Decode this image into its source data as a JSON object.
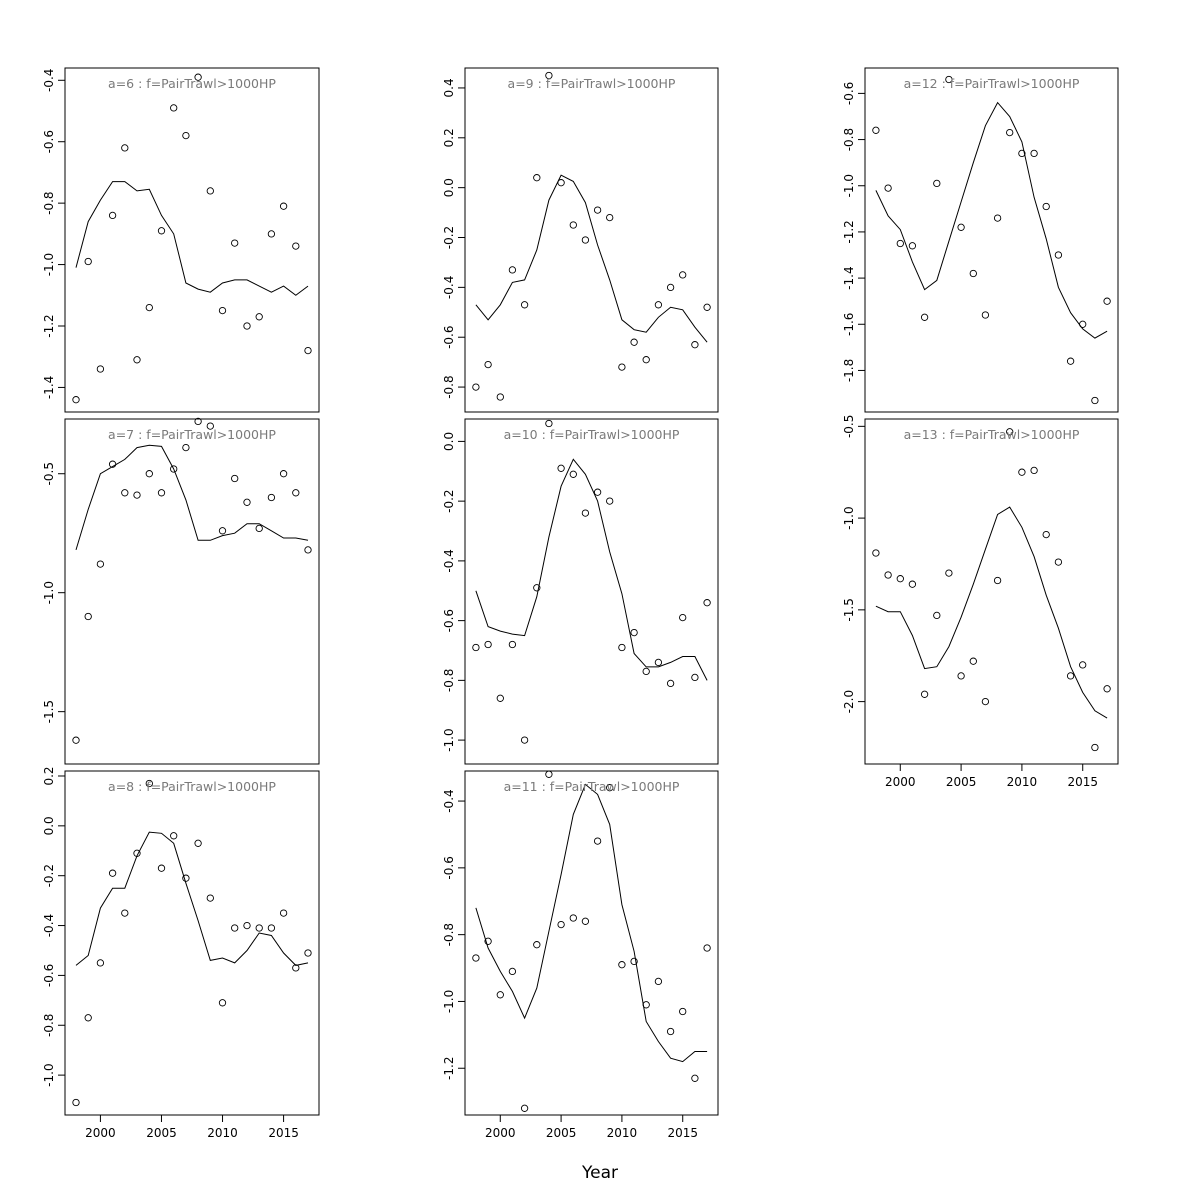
{
  "figure": {
    "xlabel": "Year",
    "axis_color": "#000000",
    "title_color": "#7a7a7a"
  },
  "chart_data": [
    {
      "type": "scatter",
      "title": "a=6  :  f=PairTrawl>1000HP",
      "xlabel": "",
      "ylabel": "",
      "xlim": [
        1997.1,
        2017.9
      ],
      "ylim": [
        -1.48,
        -0.36
      ],
      "x_ticks": [],
      "x_tick_labels": [],
      "y_ticks": [
        -1.4,
        -1.2,
        -1.0,
        -0.8,
        -0.6,
        -0.4
      ],
      "y_tick_labels": [
        "-1.4",
        "-1.2",
        "-1.0",
        "-0.8",
        "-0.6",
        "-0.4"
      ],
      "series": [
        {
          "kind": "points",
          "x": [
            1998,
            1999,
            2000,
            2001,
            2002,
            2003,
            2004,
            2005,
            2006,
            2007,
            2008,
            2009,
            2010,
            2011,
            2012,
            2013,
            2014,
            2015,
            2016,
            2017
          ],
          "y": [
            -1.44,
            -0.99,
            -1.34,
            -0.84,
            -0.62,
            -1.31,
            -1.14,
            -0.89,
            -0.49,
            -0.58,
            -0.39,
            -0.76,
            -1.15,
            -0.93,
            -1.2,
            -1.17,
            -0.9,
            -0.81,
            -0.94,
            -1.28
          ]
        },
        {
          "kind": "line",
          "x": [
            1998,
            1999,
            2000,
            2001,
            2002,
            2003,
            2004,
            2005,
            2006,
            2007,
            2008,
            2009,
            2010,
            2011,
            2012,
            2013,
            2014,
            2015,
            2016,
            2017
          ],
          "y": [
            -1.01,
            -0.86,
            -0.79,
            -0.73,
            -0.73,
            -0.76,
            -0.755,
            -0.84,
            -0.9,
            -1.06,
            -1.08,
            -1.09,
            -1.06,
            -1.05,
            -1.05,
            -1.07,
            -1.09,
            -1.07,
            -1.1,
            -1.07
          ]
        }
      ]
    },
    {
      "type": "scatter",
      "title": "a=7  :  f=PairTrawl>1000HP",
      "xlabel": "",
      "ylabel": "",
      "xlim": [
        1997.1,
        2017.9
      ],
      "ylim": [
        -1.72,
        -0.27
      ],
      "x_ticks": [],
      "x_tick_labels": [],
      "y_ticks": [
        -1.5,
        -1.0,
        -0.5
      ],
      "y_tick_labels": [
        "-1.5",
        "-1.0",
        "-0.5"
      ],
      "series": [
        {
          "kind": "points",
          "x": [
            1998,
            1999,
            2000,
            2001,
            2002,
            2003,
            2004,
            2005,
            2006,
            2007,
            2008,
            2009,
            2010,
            2011,
            2012,
            2013,
            2014,
            2015,
            2016,
            2017
          ],
          "y": [
            -1.62,
            -1.1,
            -0.88,
            -0.46,
            -0.58,
            -0.59,
            -0.5,
            -0.58,
            -0.48,
            -0.39,
            -0.28,
            -0.3,
            -0.74,
            -0.52,
            -0.62,
            -0.73,
            -0.6,
            -0.5,
            -0.58,
            -0.82
          ]
        },
        {
          "kind": "line",
          "x": [
            1998,
            1999,
            2000,
            2001,
            2002,
            2003,
            2004,
            2005,
            2006,
            2007,
            2008,
            2009,
            2010,
            2011,
            2012,
            2013,
            2014,
            2015,
            2016,
            2017
          ],
          "y": [
            -0.82,
            -0.65,
            -0.5,
            -0.47,
            -0.44,
            -0.39,
            -0.38,
            -0.385,
            -0.48,
            -0.61,
            -0.78,
            -0.78,
            -0.76,
            -0.75,
            -0.71,
            -0.71,
            -0.74,
            -0.77,
            -0.77,
            -0.78
          ]
        }
      ]
    },
    {
      "type": "scatter",
      "title": "a=8  :  f=PairTrawl>1000HP",
      "xlabel": "",
      "ylabel": "",
      "xlim": [
        1997.1,
        2017.9
      ],
      "ylim": [
        -1.16,
        0.22
      ],
      "x_ticks": [
        2000,
        2005,
        2010,
        2015
      ],
      "x_tick_labels": [
        "2000",
        "2005",
        "2010",
        "2015"
      ],
      "y_ticks": [
        -1.0,
        -0.8,
        -0.6,
        -0.4,
        -0.2,
        0.0,
        0.2
      ],
      "y_tick_labels": [
        "-1.0",
        "-0.8",
        "-0.6",
        "-0.4",
        "-0.2",
        "0.0",
        "0.2"
      ],
      "series": [
        {
          "kind": "points",
          "x": [
            1998,
            1999,
            2000,
            2001,
            2002,
            2003,
            2004,
            2005,
            2006,
            2007,
            2008,
            2009,
            2010,
            2011,
            2012,
            2013,
            2014,
            2015,
            2016,
            2017
          ],
          "y": [
            -1.11,
            -0.77,
            -0.55,
            -0.19,
            -0.35,
            -0.11,
            0.17,
            -0.17,
            -0.04,
            -0.21,
            -0.07,
            -0.29,
            -0.71,
            -0.41,
            -0.4,
            -0.41,
            -0.41,
            -0.35,
            -0.57,
            -0.51
          ]
        },
        {
          "kind": "line",
          "x": [
            1998,
            1999,
            2000,
            2001,
            2002,
            2003,
            2004,
            2005,
            2006,
            2007,
            2008,
            2009,
            2010,
            2011,
            2012,
            2013,
            2014,
            2015,
            2016,
            2017
          ],
          "y": [
            -0.56,
            -0.52,
            -0.33,
            -0.25,
            -0.25,
            -0.12,
            -0.025,
            -0.03,
            -0.07,
            -0.23,
            -0.38,
            -0.54,
            -0.53,
            -0.55,
            -0.5,
            -0.43,
            -0.44,
            -0.51,
            -0.56,
            -0.55
          ]
        }
      ]
    },
    {
      "type": "scatter",
      "title": "a=9  :  f=PairTrawl>1000HP",
      "xlabel": "",
      "ylabel": "",
      "xlim": [
        1997.1,
        2017.9
      ],
      "ylim": [
        -0.9,
        0.48
      ],
      "x_ticks": [],
      "x_tick_labels": [],
      "y_ticks": [
        -0.8,
        -0.6,
        -0.4,
        -0.2,
        0.0,
        0.2,
        0.4
      ],
      "y_tick_labels": [
        "-0.8",
        "-0.6",
        "-0.4",
        "-0.2",
        "0.0",
        "0.2",
        "0.4"
      ],
      "series": [
        {
          "kind": "points",
          "x": [
            1998,
            1999,
            2000,
            2001,
            2002,
            2003,
            2004,
            2005,
            2006,
            2007,
            2008,
            2009,
            2010,
            2011,
            2012,
            2013,
            2014,
            2015,
            2016,
            2017
          ],
          "y": [
            -0.8,
            -0.71,
            -0.84,
            -0.33,
            -0.47,
            0.04,
            0.45,
            0.02,
            -0.15,
            -0.21,
            -0.09,
            -0.12,
            -0.72,
            -0.62,
            -0.69,
            -0.47,
            -0.4,
            -0.35,
            -0.63,
            -0.48
          ]
        },
        {
          "kind": "line",
          "x": [
            1998,
            1999,
            2000,
            2001,
            2002,
            2003,
            2004,
            2005,
            2006,
            2007,
            2008,
            2009,
            2010,
            2011,
            2012,
            2013,
            2014,
            2015,
            2016,
            2017
          ],
          "y": [
            -0.47,
            -0.53,
            -0.47,
            -0.38,
            -0.37,
            -0.25,
            -0.05,
            0.05,
            0.025,
            -0.06,
            -0.23,
            -0.37,
            -0.53,
            -0.57,
            -0.58,
            -0.52,
            -0.48,
            -0.49,
            -0.56,
            -0.62
          ]
        }
      ]
    },
    {
      "type": "scatter",
      "title": "a=10  :  f=PairTrawl>1000HP",
      "xlabel": "",
      "ylabel": "",
      "xlim": [
        1997.1,
        2017.9
      ],
      "ylim": [
        -1.08,
        0.075
      ],
      "x_ticks": [],
      "x_tick_labels": [],
      "y_ticks": [
        -1.0,
        -0.8,
        -0.6,
        -0.4,
        -0.2,
        0.0
      ],
      "y_tick_labels": [
        "-1.0",
        "-0.8",
        "-0.6",
        "-0.4",
        "-0.2",
        "0.0"
      ],
      "series": [
        {
          "kind": "points",
          "x": [
            1998,
            1999,
            2000,
            2001,
            2002,
            2003,
            2004,
            2005,
            2006,
            2007,
            2008,
            2009,
            2010,
            2011,
            2012,
            2013,
            2014,
            2015,
            2016,
            2017
          ],
          "y": [
            -0.69,
            -0.68,
            -0.86,
            -0.68,
            -1.0,
            -0.49,
            0.06,
            -0.09,
            -0.11,
            -0.24,
            -0.17,
            -0.2,
            -0.69,
            -0.64,
            -0.77,
            -0.74,
            -0.81,
            -0.59,
            -0.79,
            -0.54
          ]
        },
        {
          "kind": "line",
          "x": [
            1998,
            1999,
            2000,
            2001,
            2002,
            2003,
            2004,
            2005,
            2006,
            2007,
            2008,
            2009,
            2010,
            2011,
            2012,
            2013,
            2014,
            2015,
            2016,
            2017
          ],
          "y": [
            -0.5,
            -0.62,
            -0.635,
            -0.645,
            -0.65,
            -0.52,
            -0.32,
            -0.15,
            -0.06,
            -0.11,
            -0.2,
            -0.37,
            -0.51,
            -0.71,
            -0.755,
            -0.755,
            -0.74,
            -0.72,
            -0.72,
            -0.8
          ]
        }
      ]
    },
    {
      "type": "scatter",
      "title": "a=11  :  f=PairTrawl>1000HP",
      "xlabel": "",
      "ylabel": "",
      "xlim": [
        1997.1,
        2017.9
      ],
      "ylim": [
        -1.34,
        -0.31
      ],
      "x_ticks": [
        2000,
        2005,
        2010,
        2015
      ],
      "x_tick_labels": [
        "2000",
        "2005",
        "2010",
        "2015"
      ],
      "y_ticks": [
        -1.2,
        -1.0,
        -0.8,
        -0.6,
        -0.4
      ],
      "y_tick_labels": [
        "-1.2",
        "-1.0",
        "-0.8",
        "-0.6",
        "-0.4"
      ],
      "series": [
        {
          "kind": "points",
          "x": [
            1998,
            1999,
            2000,
            2001,
            2002,
            2003,
            2004,
            2005,
            2006,
            2007,
            2008,
            2009,
            2010,
            2011,
            2012,
            2013,
            2014,
            2015,
            2016,
            2017
          ],
          "y": [
            -0.87,
            -0.82,
            -0.98,
            -0.91,
            -1.32,
            -0.83,
            -0.32,
            -0.77,
            -0.75,
            -0.76,
            -0.52,
            -0.36,
            -0.89,
            -0.88,
            -1.01,
            -0.94,
            -1.09,
            -1.03,
            -1.23,
            -0.84
          ]
        },
        {
          "kind": "line",
          "x": [
            1998,
            1999,
            2000,
            2001,
            2002,
            2003,
            2004,
            2005,
            2006,
            2007,
            2008,
            2009,
            2010,
            2011,
            2012,
            2013,
            2014,
            2015,
            2016,
            2017
          ],
          "y": [
            -0.72,
            -0.84,
            -0.91,
            -0.97,
            -1.05,
            -0.96,
            -0.79,
            -0.62,
            -0.44,
            -0.35,
            -0.38,
            -0.47,
            -0.71,
            -0.85,
            -1.06,
            -1.12,
            -1.17,
            -1.18,
            -1.15,
            -1.15
          ]
        }
      ]
    },
    {
      "type": "scatter",
      "title": "a=12  :  f=PairTrawl>1000HP",
      "xlabel": "",
      "ylabel": "",
      "xlim": [
        1997.1,
        2017.9
      ],
      "ylim": [
        -1.98,
        -0.49
      ],
      "x_ticks": [],
      "x_tick_labels": [],
      "y_ticks": [
        -1.8,
        -1.6,
        -1.4,
        -1.2,
        -1.0,
        -0.8,
        -0.6
      ],
      "y_tick_labels": [
        "-1.8",
        "-1.6",
        "-1.4",
        "-1.2",
        "-1.0",
        "-0.8",
        "-0.6"
      ],
      "series": [
        {
          "kind": "points",
          "x": [
            1998,
            1999,
            2000,
            2001,
            2002,
            2003,
            2004,
            2005,
            2006,
            2007,
            2008,
            2009,
            2010,
            2011,
            2012,
            2013,
            2014,
            2015,
            2016,
            2017
          ],
          "y": [
            -0.76,
            -1.01,
            -1.25,
            -1.26,
            -1.57,
            -0.99,
            -0.54,
            -1.18,
            -1.38,
            -1.56,
            -1.14,
            -0.77,
            -0.86,
            -0.86,
            -1.09,
            -1.3,
            -1.76,
            -1.6,
            -1.93,
            -1.5
          ]
        },
        {
          "kind": "line",
          "x": [
            1998,
            1999,
            2000,
            2001,
            2002,
            2003,
            2004,
            2005,
            2006,
            2007,
            2008,
            2009,
            2010,
            2011,
            2012,
            2013,
            2014,
            2015,
            2016,
            2017
          ],
          "y": [
            -1.02,
            -1.13,
            -1.19,
            -1.33,
            -1.45,
            -1.41,
            -1.24,
            -1.07,
            -0.9,
            -0.74,
            -0.64,
            -0.7,
            -0.81,
            -1.05,
            -1.23,
            -1.44,
            -1.55,
            -1.62,
            -1.66,
            -1.63
          ]
        }
      ]
    },
    {
      "type": "scatter",
      "title": "a=13  :  f=PairTrawl>1000HP",
      "xlabel": "",
      "ylabel": "",
      "xlim": [
        1997.1,
        2017.9
      ],
      "ylim": [
        -2.34,
        -0.46
      ],
      "x_ticks": [
        2000,
        2005,
        2010,
        2015
      ],
      "x_tick_labels": [
        "2000",
        "2005",
        "2010",
        "2015"
      ],
      "y_ticks": [
        -2.0,
        -1.5,
        -1.0,
        -0.5
      ],
      "y_tick_labels": [
        "-2.0",
        "-1.5",
        "-1.0",
        "-0.5"
      ],
      "series": [
        {
          "kind": "points",
          "x": [
            1998,
            1999,
            2000,
            2001,
            2002,
            2003,
            2004,
            2005,
            2006,
            2007,
            2008,
            2009,
            2010,
            2011,
            2012,
            2013,
            2014,
            2015,
            2016,
            2017
          ],
          "y": [
            -1.19,
            -1.31,
            -1.33,
            -1.36,
            -1.96,
            -1.53,
            -1.3,
            -1.86,
            -1.78,
            -2.0,
            -1.34,
            -0.53,
            -0.75,
            -0.74,
            -1.09,
            -1.24,
            -1.86,
            -1.8,
            -2.25,
            -1.93
          ]
        },
        {
          "kind": "line",
          "x": [
            1998,
            1999,
            2000,
            2001,
            2002,
            2003,
            2004,
            2005,
            2006,
            2007,
            2008,
            2009,
            2010,
            2011,
            2012,
            2013,
            2014,
            2015,
            2016,
            2017
          ],
          "y": [
            -1.48,
            -1.51,
            -1.51,
            -1.64,
            -1.82,
            -1.81,
            -1.7,
            -1.54,
            -1.36,
            -1.17,
            -0.98,
            -0.94,
            -1.05,
            -1.21,
            -1.42,
            -1.6,
            -1.81,
            -1.95,
            -2.05,
            -2.09
          ]
        }
      ]
    }
  ]
}
